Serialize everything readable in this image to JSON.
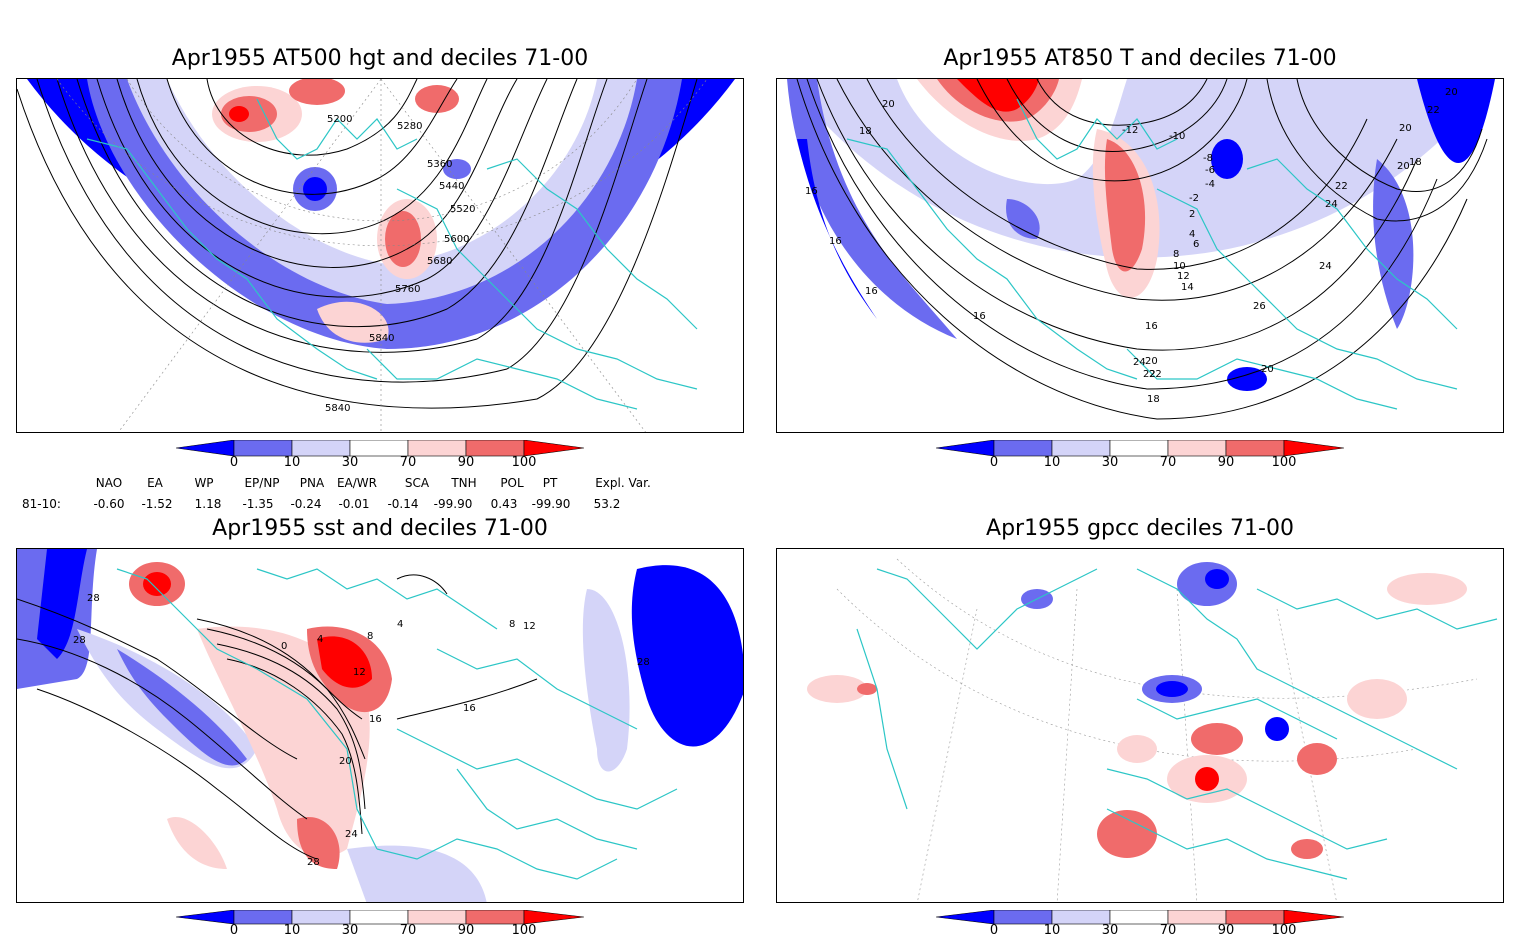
{
  "panels": [
    {
      "id": "hgt500",
      "title": "Apr1955 AT500 hgt and deciles 71-00",
      "contour_labels": [
        "5200",
        "5280",
        "5360",
        "5440",
        "5520",
        "5600",
        "5680",
        "5760",
        "5840",
        "5840"
      ]
    },
    {
      "id": "t850",
      "title": "Apr1955 AT850 T and deciles 71-00",
      "contour_labels": [
        "20",
        "18",
        "16",
        "16",
        "16",
        "-12",
        "-10",
        "-8",
        "-6",
        "-4",
        "-2",
        "2",
        "4",
        "6",
        "8",
        "10",
        "12",
        "14",
        "16",
        "20",
        "22",
        "24",
        "26",
        "24",
        "22",
        "20",
        "18",
        "20",
        "22",
        "20",
        "18",
        "24",
        "22",
        "20",
        "16"
      ]
    },
    {
      "id": "sst",
      "title": "Apr1955 sst and deciles 71-00",
      "contour_labels": [
        "28",
        "28",
        "0",
        "4",
        "8",
        "12",
        "16",
        "20",
        "24",
        "28",
        "16",
        "8",
        "12",
        "4",
        "28"
      ]
    },
    {
      "id": "gpcc",
      "title": "Apr1955 gpcc deciles 71-00",
      "contour_labels": []
    }
  ],
  "colorbar": {
    "ticks": [
      "0",
      "10",
      "30",
      "70",
      "90",
      "100"
    ],
    "colors": [
      "#0000ff",
      "#6b6bf0",
      "#d4d4f8",
      "#ffffff",
      "#fcd4d4",
      "#f06b6b",
      "#ff0000"
    ]
  },
  "indices": {
    "headers": [
      "NAO",
      "EA",
      "WP",
      "EP/NP",
      "PNA",
      "EA/WR",
      "SCA",
      "TNH",
      "POL",
      "PT",
      "Expl. Var."
    ],
    "row_label": "81-10:",
    "values": [
      "-0.60",
      "-1.52",
      "1.18",
      "-1.35",
      "-0.24",
      "-0.01",
      "-0.14",
      "-99.90",
      "0.43",
      "-99.90",
      "53.2"
    ]
  }
}
